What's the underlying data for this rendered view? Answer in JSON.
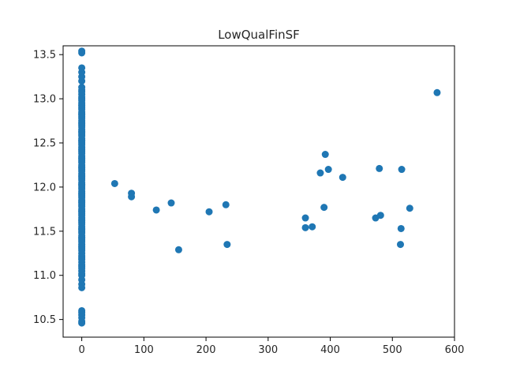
{
  "chart_data": {
    "type": "scatter",
    "title": "LowQualFinSF",
    "xlabel": "",
    "ylabel": "",
    "xlim": [
      -30,
      600
    ],
    "ylim": [
      10.3,
      13.6
    ],
    "xticks": [
      0,
      100,
      200,
      300,
      400,
      500,
      600
    ],
    "yticks": [
      10.5,
      11.0,
      11.5,
      12.0,
      12.5,
      13.0,
      13.5
    ],
    "grid": false,
    "marker_color": "#1f77b4",
    "series": [
      {
        "x": [
          0,
          0,
          0,
          0,
          0,
          0,
          0,
          0,
          0,
          0,
          0,
          0,
          0,
          0,
          0,
          0,
          0,
          0,
          0,
          0,
          0,
          0,
          0,
          0,
          0,
          0,
          0,
          0,
          0,
          0,
          0,
          0,
          0,
          0,
          0,
          0,
          0,
          0,
          0,
          0,
          0,
          0,
          0,
          0,
          0,
          0,
          0,
          0,
          0,
          0,
          0,
          0,
          0,
          0,
          0,
          0,
          0,
          0,
          0,
          0,
          0,
          0,
          0,
          0,
          0,
          0,
          0,
          0,
          0,
          0,
          0,
          0,
          0,
          0,
          0,
          0,
          0,
          0,
          0,
          0,
          0,
          0,
          0,
          0,
          0,
          0,
          0,
          0,
          0,
          0,
          0,
          0,
          0,
          0,
          0,
          0,
          0,
          0,
          0,
          0,
          0,
          0,
          0,
          0,
          0,
          0,
          0,
          0,
          0,
          0,
          0,
          0,
          0,
          0,
          0,
          0,
          0,
          0,
          53,
          80,
          80,
          120,
          144,
          156,
          205,
          232,
          234,
          360,
          360,
          371,
          384,
          390,
          392,
          397,
          420,
          473,
          479,
          481,
          513,
          514,
          515,
          528,
          572
        ],
        "y": [
          10.46,
          10.48,
          10.52,
          10.55,
          10.58,
          10.6,
          10.86,
          10.9,
          10.95,
          11.0,
          11.05,
          11.1,
          11.15,
          11.2,
          11.25,
          11.3,
          11.35,
          11.4,
          11.45,
          11.5,
          11.55,
          11.6,
          11.65,
          11.7,
          11.75,
          11.8,
          11.85,
          11.9,
          11.95,
          12.0,
          12.05,
          12.1,
          12.15,
          12.2,
          12.25,
          12.3,
          12.35,
          12.4,
          12.45,
          12.5,
          12.55,
          12.6,
          12.65,
          12.7,
          12.75,
          12.8,
          12.85,
          12.9,
          12.95,
          13.0,
          13.05,
          13.1,
          13.2,
          13.25,
          13.3,
          13.35,
          13.52,
          13.54,
          11.02,
          11.12,
          11.22,
          11.32,
          11.42,
          11.52,
          11.62,
          11.72,
          11.82,
          11.92,
          12.02,
          12.12,
          12.22,
          12.32,
          12.42,
          12.52,
          12.62,
          12.72,
          12.82,
          12.92,
          13.02,
          11.08,
          11.18,
          11.28,
          11.38,
          11.48,
          11.58,
          11.68,
          11.78,
          11.88,
          11.98,
          12.08,
          12.18,
          12.28,
          12.38,
          12.48,
          12.58,
          12.68,
          12.78,
          12.88,
          12.98,
          13.08,
          11.33,
          11.43,
          11.53,
          11.63,
          11.73,
          11.83,
          11.93,
          12.03,
          12.13,
          12.23,
          12.33,
          12.43,
          12.53,
          12.63,
          12.73,
          12.83,
          12.93,
          13.13,
          12.04,
          11.93,
          11.89,
          11.74,
          11.82,
          11.29,
          11.72,
          11.8,
          11.35,
          11.65,
          11.54,
          11.55,
          12.16,
          11.77,
          12.37,
          12.2,
          12.11,
          11.65,
          12.21,
          11.68,
          11.35,
          11.53,
          12.2,
          11.76,
          13.07
        ]
      }
    ]
  }
}
